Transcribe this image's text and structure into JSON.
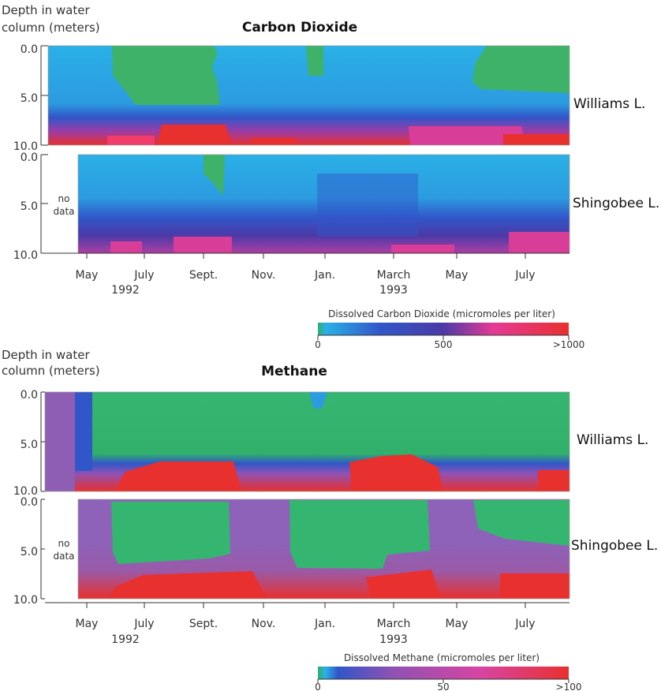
{
  "chart_data": [
    {
      "type": "heatmap",
      "title": "Carbon Dioxide",
      "ylabel_line1": "Depth in water",
      "ylabel_line2": "column (meters)",
      "yticks": [
        "0.0",
        "5.0",
        "10.0"
      ],
      "ylim": [
        0,
        10
      ],
      "x_categories": [
        "May",
        "July",
        "Sept.",
        "Nov.",
        "Jan.",
        "March",
        "May",
        "July"
      ],
      "year_labels": [
        "1992",
        "1993"
      ],
      "series": [
        {
          "name": "Williams L.",
          "note": "",
          "surface_band": {
            "type": "low",
            "value": "0"
          },
          "bottom_band": {
            "type": "high",
            "value": ">1000"
          }
        },
        {
          "name": "Shingobee L.",
          "note": "no data",
          "surface_band": {
            "type": "low-mid",
            "value": "0-500"
          },
          "bottom_band": {
            "type": "mid-high",
            "value": "500-1000"
          }
        }
      ],
      "colorbar": {
        "label": "Dissolved Carbon Dioxide (micromoles per liter)",
        "ticks": [
          "0",
          "500",
          ">1000"
        ],
        "colors": [
          "#2db06a",
          "#2ab0e6",
          "#3156c9",
          "#4b3aa7",
          "#ad3fa4",
          "#e53a95",
          "#f13c6c",
          "#e8302e"
        ]
      }
    },
    {
      "type": "heatmap",
      "title": "Methane",
      "ylabel_line1": "Depth in water",
      "ylabel_line2": "column (meters)",
      "yticks": [
        "0.0",
        "5.0",
        "10.0"
      ],
      "ylim": [
        0,
        10
      ],
      "x_categories": [
        "May",
        "July",
        "Sept.",
        "Nov.",
        "Jan.",
        "March",
        "May",
        "July"
      ],
      "year_labels": [
        "1992",
        "1993"
      ],
      "series": [
        {
          "name": "Williams L.",
          "note": "",
          "surface_band": {
            "type": "low",
            "value": "0"
          },
          "bottom_band": {
            "type": "high",
            "value": ">100"
          }
        },
        {
          "name": "Shingobee L.",
          "note": "no data",
          "surface_band": {
            "type": "low",
            "value": "0"
          },
          "bottom_band": {
            "type": "high",
            "value": ">100"
          }
        }
      ],
      "colorbar": {
        "label": "Dissolved Methane (micromoles per liter)",
        "ticks": [
          "0",
          "50",
          ">100"
        ],
        "colors": [
          "#2db06a",
          "#2ab0e6",
          "#3156c9",
          "#4b3aa7",
          "#8f52b3",
          "#d745a3",
          "#f13c6c",
          "#e8302e"
        ]
      }
    }
  ]
}
